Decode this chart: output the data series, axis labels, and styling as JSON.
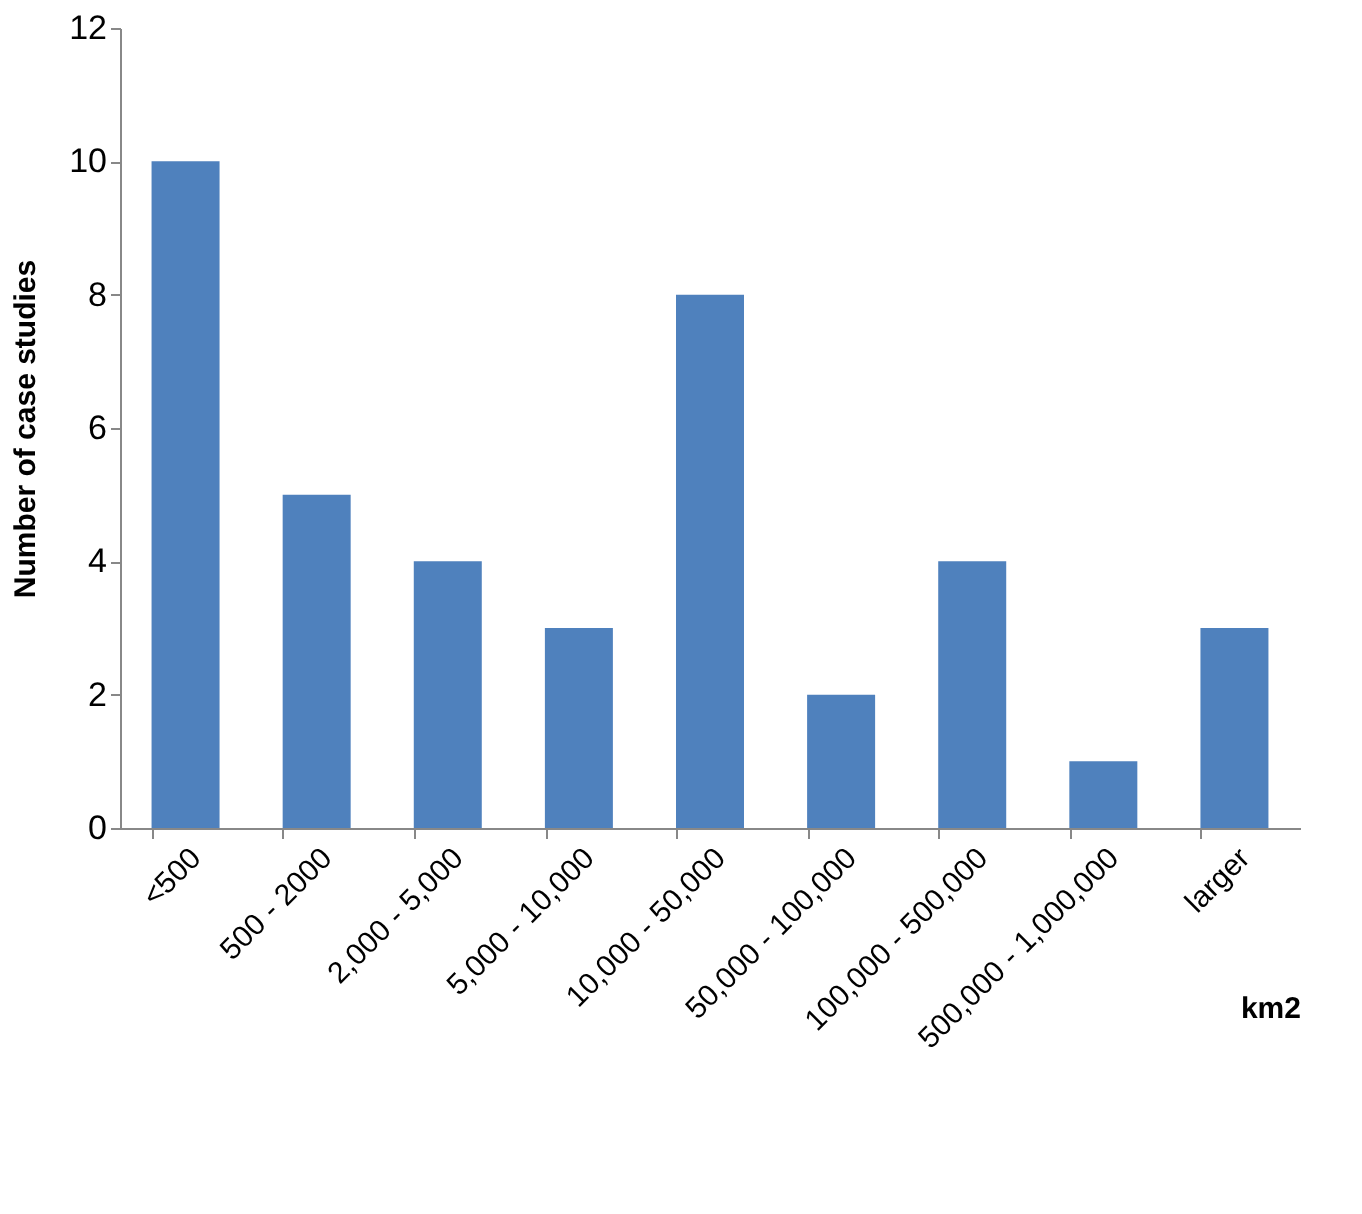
{
  "chart_data": {
    "type": "bar",
    "xlabel": "km2",
    "ylabel": "Number of case studies",
    "categories": [
      "<500",
      "500 - 2000",
      "2,000 - 5,000",
      "5,000 - 10,000",
      "10,000 - 50,000",
      "50,000 - 100,000",
      "100,000 - 500,000",
      "500,000 - 1,000,000",
      "larger"
    ],
    "values": [
      10,
      5,
      4,
      3,
      8,
      2,
      4,
      1,
      3
    ],
    "color": "#4f81bd",
    "ylim": [
      0,
      12
    ],
    "yticks": [
      0,
      2,
      4,
      6,
      8,
      10,
      12
    ],
    "grid": false
  }
}
